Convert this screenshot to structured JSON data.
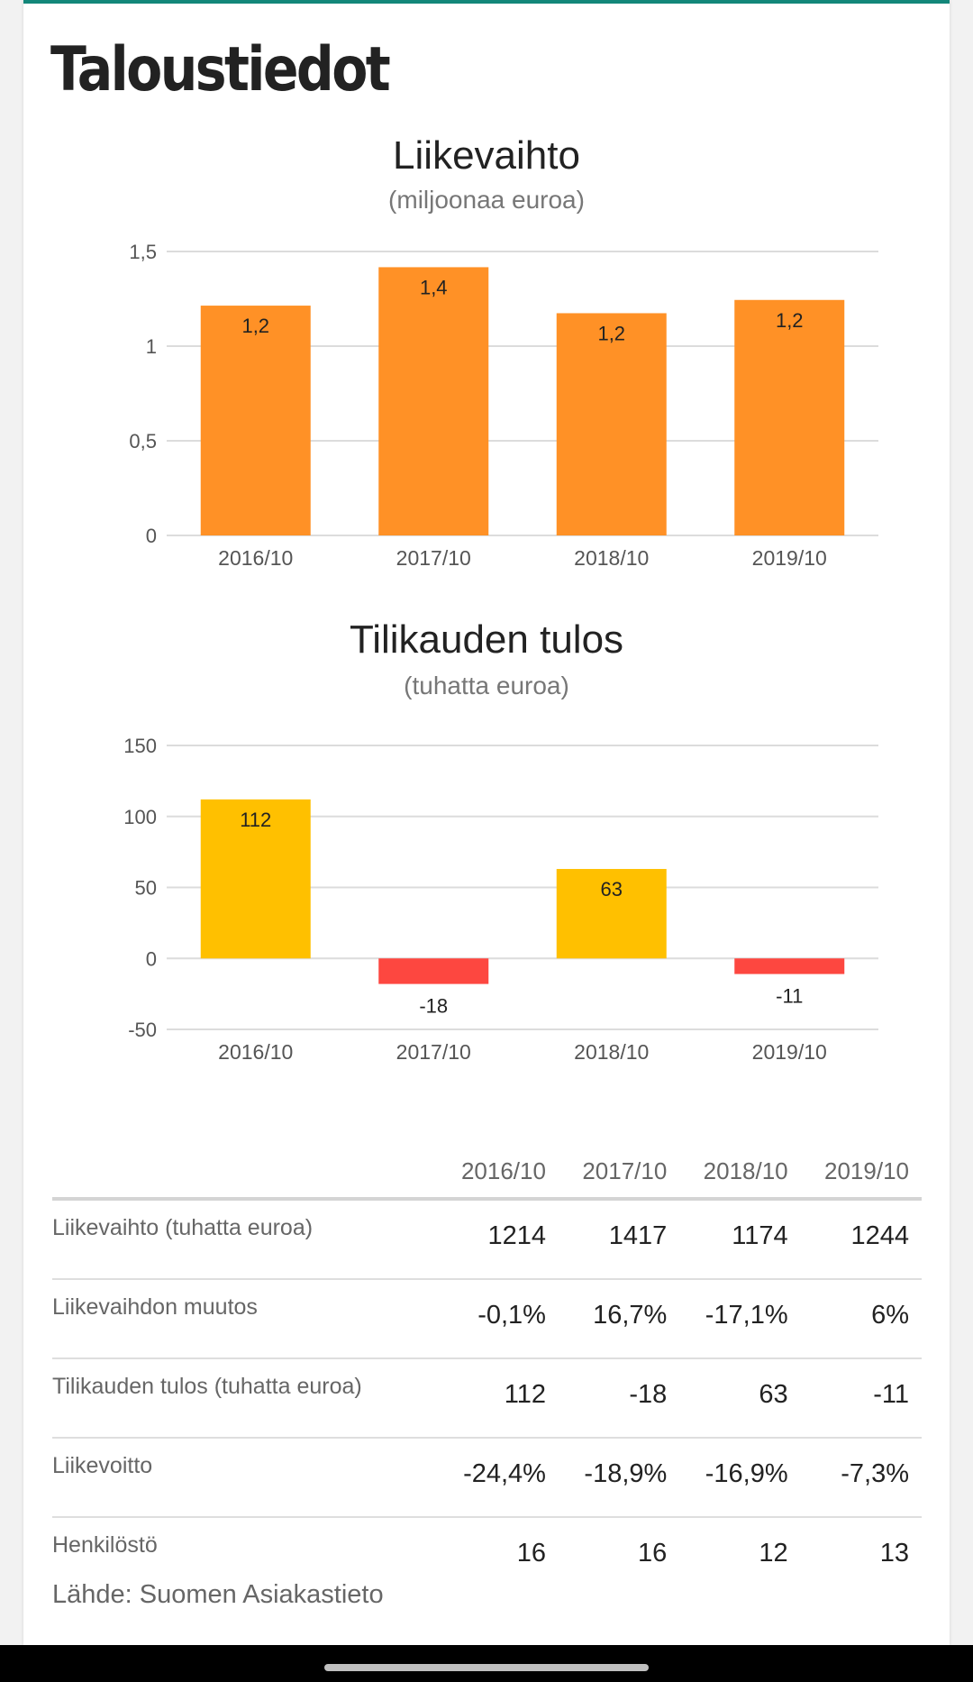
{
  "page": {
    "title": "Taloustiedot"
  },
  "chart_data": [
    {
      "type": "bar",
      "title": "Liikevaihto",
      "subtitle": "(miljoonaa euroa)",
      "categories": [
        "2016/10",
        "2017/10",
        "2018/10",
        "2019/10"
      ],
      "values": [
        1.214,
        1.417,
        1.174,
        1.244
      ],
      "data_labels": [
        "1,2",
        "1,4",
        "1,2",
        "1,2"
      ],
      "ylim": [
        0,
        1.5
      ],
      "yticks": [
        0,
        0.5,
        1,
        1.5
      ],
      "ytick_labels": [
        "0",
        "0,5",
        "1",
        "1,5"
      ],
      "grid": true,
      "colors": {
        "bar": "#ff9126"
      }
    },
    {
      "type": "bar",
      "title": "Tilikauden tulos",
      "subtitle": "(tuhatta euroa)",
      "categories": [
        "2016/10",
        "2017/10",
        "2018/10",
        "2019/10"
      ],
      "values": [
        112,
        -18,
        63,
        -11
      ],
      "data_labels": [
        "112",
        "-18",
        "63",
        "-11"
      ],
      "ylim": [
        -50,
        150
      ],
      "yticks": [
        -50,
        0,
        50,
        100,
        150
      ],
      "ytick_labels": [
        "-50",
        "0",
        "50",
        "100",
        "150"
      ],
      "grid": true,
      "colors": {
        "positive": "#ffc000",
        "negative": "#fd4740"
      }
    }
  ],
  "table": {
    "columns": [
      "2016/10",
      "2017/10",
      "2018/10",
      "2019/10"
    ],
    "rows": [
      {
        "label": "Liikevaihto (tuhatta euroa)",
        "values": [
          "1214",
          "1417",
          "1174",
          "1244"
        ]
      },
      {
        "label": "Liikevaihdon muutos",
        "values": [
          "-0,1%",
          "16,7%",
          "-17,1%",
          "6%"
        ]
      },
      {
        "label": "Tilikauden tulos (tuhatta euroa)",
        "values": [
          "112",
          "-18",
          "63",
          "-11"
        ]
      },
      {
        "label": "Liikevoitto",
        "values": [
          "-24,4%",
          "-18,9%",
          "-16,9%",
          "-7,3%"
        ]
      },
      {
        "label": "Henkilöstö",
        "values": [
          "16",
          "16",
          "12",
          "13"
        ]
      }
    ]
  },
  "source": "Lähde: Suomen Asiakastieto"
}
